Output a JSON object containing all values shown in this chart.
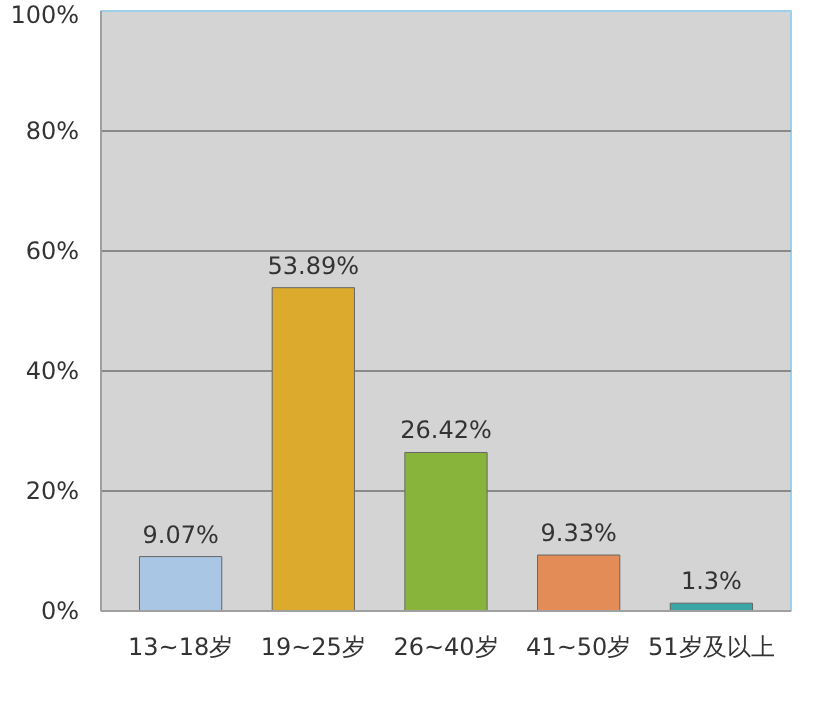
{
  "chart_data": {
    "type": "bar",
    "categories": [
      "13~18岁",
      "19~25岁",
      "26~40岁",
      "41~50岁",
      "51岁及以上"
    ],
    "values": [
      9.07,
      53.89,
      26.42,
      9.33,
      1.3
    ],
    "colors": [
      "#a9c6e4",
      "#dcaa2c",
      "#88b43c",
      "#e48c58",
      "#3aa6a6"
    ],
    "value_labels": [
      "9.07%",
      "53.89%",
      "26.42%",
      "9.33%",
      "1.3%"
    ],
    "ylim": [
      0,
      100
    ],
    "yticks": [
      {
        "value": 0,
        "label": "0%"
      },
      {
        "value": 20,
        "label": "20%"
      },
      {
        "value": 40,
        "label": "40%"
      },
      {
        "value": 60,
        "label": "60%"
      },
      {
        "value": 80,
        "label": "80%"
      },
      {
        "value": 100,
        "label": "100%"
      }
    ],
    "grid": "y"
  }
}
